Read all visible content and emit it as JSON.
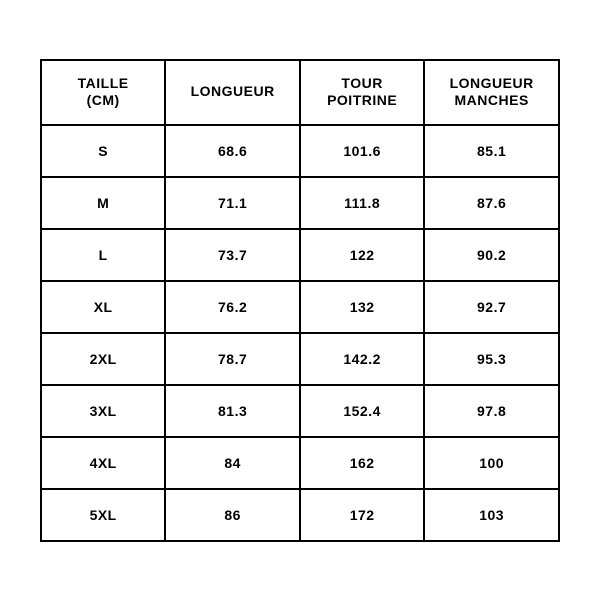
{
  "size_table": {
    "type": "table",
    "border_color": "#000000",
    "background_color": "#ffffff",
    "text_color": "#000000",
    "header_fontsize": 14,
    "cell_fontsize": 14,
    "font_weight": 700,
    "columns": [
      {
        "label": "TAILLE\n(CM)",
        "width_pct": 24
      },
      {
        "label": "LONGUEUR",
        "width_pct": 26
      },
      {
        "label": "TOUR\nPOITRINE",
        "width_pct": 24
      },
      {
        "label": "LONGUEUR\nMANCHES",
        "width_pct": 26
      }
    ],
    "rows": [
      [
        "S",
        "68.6",
        "101.6",
        "85.1"
      ],
      [
        "M",
        "71.1",
        "111.8",
        "87.6"
      ],
      [
        "L",
        "73.7",
        "122",
        "90.2"
      ],
      [
        "XL",
        "76.2",
        "132",
        "92.7"
      ],
      [
        "2XL",
        "78.7",
        "142.2",
        "95.3"
      ],
      [
        "3XL",
        "81.3",
        "152.4",
        "97.8"
      ],
      [
        "4XL",
        "84",
        "162",
        "100"
      ],
      [
        "5XL",
        "86",
        "172",
        "103"
      ]
    ]
  }
}
